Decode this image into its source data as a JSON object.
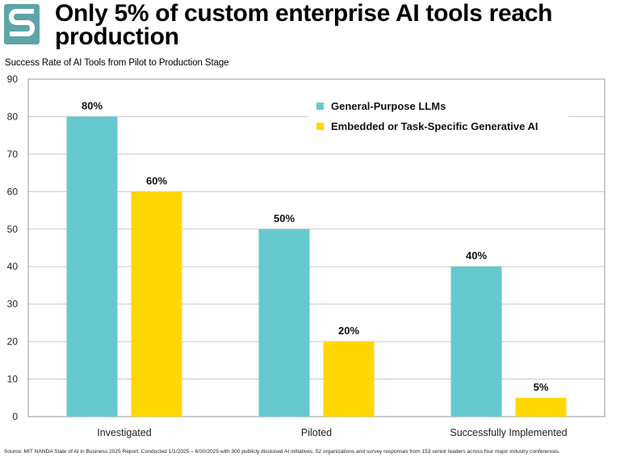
{
  "header": {
    "title": "Only 5% of custom enterprise AI tools reach production",
    "subtitle": "Success Rate of AI Tools from Pilot to Production Stage",
    "logo_icon": "s-logo-icon",
    "logo_color": "#5DA5A6"
  },
  "footer": {
    "source": "Source: MIT NANDA State of AI in Business 2025 Report. Conducted 1/1/2025 – 6/30/2025 with 300 publicly disclosed AI initiatives, 52 organizations and survey responses from 153 senior leaders across four major industry conferences."
  },
  "chart_data": {
    "type": "bar",
    "categories": [
      "Investigated",
      "Piloted",
      "Successfully Implemented"
    ],
    "series": [
      {
        "name": "General-Purpose LLMs",
        "values": [
          80,
          50,
          40
        ],
        "labels": [
          "80%",
          "50%",
          "40%"
        ],
        "color": "#66C9CF"
      },
      {
        "name": "Embedded or Task-Specific Generative AI",
        "values": [
          60,
          20,
          5
        ],
        "labels": [
          "60%",
          "20%",
          "5%"
        ],
        "color": "#FFD700"
      }
    ],
    "ylim": [
      0,
      90
    ],
    "yticks": [
      0,
      10,
      20,
      30,
      40,
      50,
      60,
      70,
      80,
      90
    ],
    "grid": true,
    "legend_position": "top-right"
  }
}
